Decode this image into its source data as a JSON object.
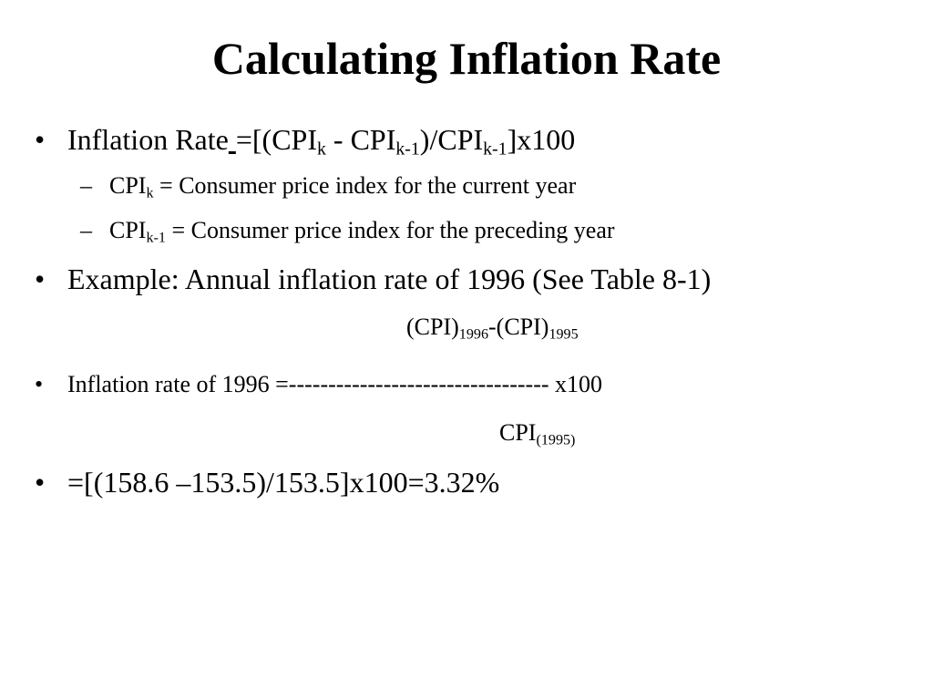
{
  "slide": {
    "title": "Calculating Inflation Rate",
    "bullet_glyph": "•",
    "dash_glyph": "–",
    "b1": {
      "t1": "Inflation Rate",
      "t2": " ",
      "t3": "=[(CPI",
      "s1": "k",
      "t4": " - CPI",
      "s2": "k-1",
      "t5": ")/CPI",
      "s3": "k-1",
      "t6": "]x100"
    },
    "sub1": {
      "t1": "CPI",
      "s1": "k",
      "t2": " = Consumer price index for the current year"
    },
    "sub2": {
      "t1": "CPI",
      "s1": "k-1",
      "t2": " = Consumer price index for the preceding year"
    },
    "b2": {
      "text": "Example: Annual inflation rate of 1996 (See Table 8-1)"
    },
    "numerator": {
      "t1": "(CPI)",
      "s1": "1996",
      "t2": "-(CPI)",
      "s2": "1995"
    },
    "b3": {
      "text": "Inflation rate of 1996 =--------------------------------- x100"
    },
    "denominator": {
      "t1": "CPI",
      "s1": "(1995)"
    },
    "b4": {
      "text": "=[(158.6 –153.5)/153.5]x100=3.32%"
    }
  }
}
